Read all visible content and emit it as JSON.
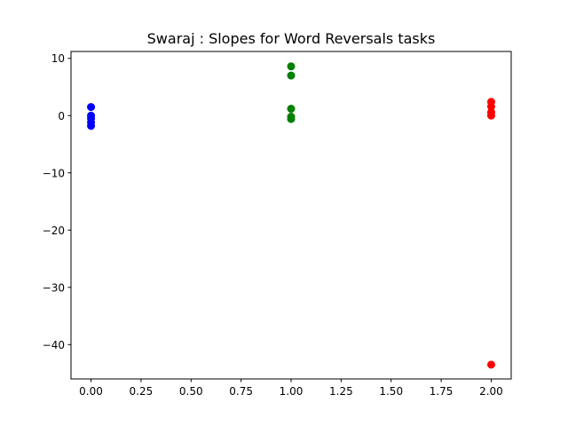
{
  "chart_data": {
    "type": "scatter",
    "title": "Swaraj : Slopes for Word Reversals tasks",
    "xlabel": "",
    "ylabel": "",
    "xlim": [
      -0.1,
      2.1
    ],
    "ylim": [
      -46,
      11.2
    ],
    "x_ticks": [
      0.0,
      0.25,
      0.5,
      0.75,
      1.0,
      1.25,
      1.5,
      1.75,
      2.0
    ],
    "x_tick_labels": [
      "0.00",
      "0.25",
      "0.50",
      "0.75",
      "1.00",
      "1.25",
      "1.50",
      "1.75",
      "2.00"
    ],
    "y_ticks": [
      10,
      0,
      -10,
      -20,
      -30,
      -40
    ],
    "y_tick_labels": [
      "10",
      "0",
      "−10",
      "−20",
      "−30",
      "−40"
    ],
    "grid": false,
    "legend": "none",
    "series": [
      {
        "color": "#0000ff",
        "points": [
          {
            "x": 0,
            "y": 1.5
          },
          {
            "x": 0,
            "y": 0.0
          },
          {
            "x": 0,
            "y": -0.5
          },
          {
            "x": 0,
            "y": -1.2
          },
          {
            "x": 0,
            "y": -1.8
          }
        ]
      },
      {
        "color": "#008000",
        "points": [
          {
            "x": 1,
            "y": 8.6
          },
          {
            "x": 1,
            "y": 7.0
          },
          {
            "x": 1,
            "y": 1.2
          },
          {
            "x": 1,
            "y": -0.2
          },
          {
            "x": 1,
            "y": -0.6
          }
        ]
      },
      {
        "color": "#ff0000",
        "points": [
          {
            "x": 2,
            "y": 2.4
          },
          {
            "x": 2,
            "y": 1.6
          },
          {
            "x": 2,
            "y": 0.6
          },
          {
            "x": 2,
            "y": 0.0
          },
          {
            "x": 2,
            "y": -43.5
          }
        ]
      }
    ]
  }
}
